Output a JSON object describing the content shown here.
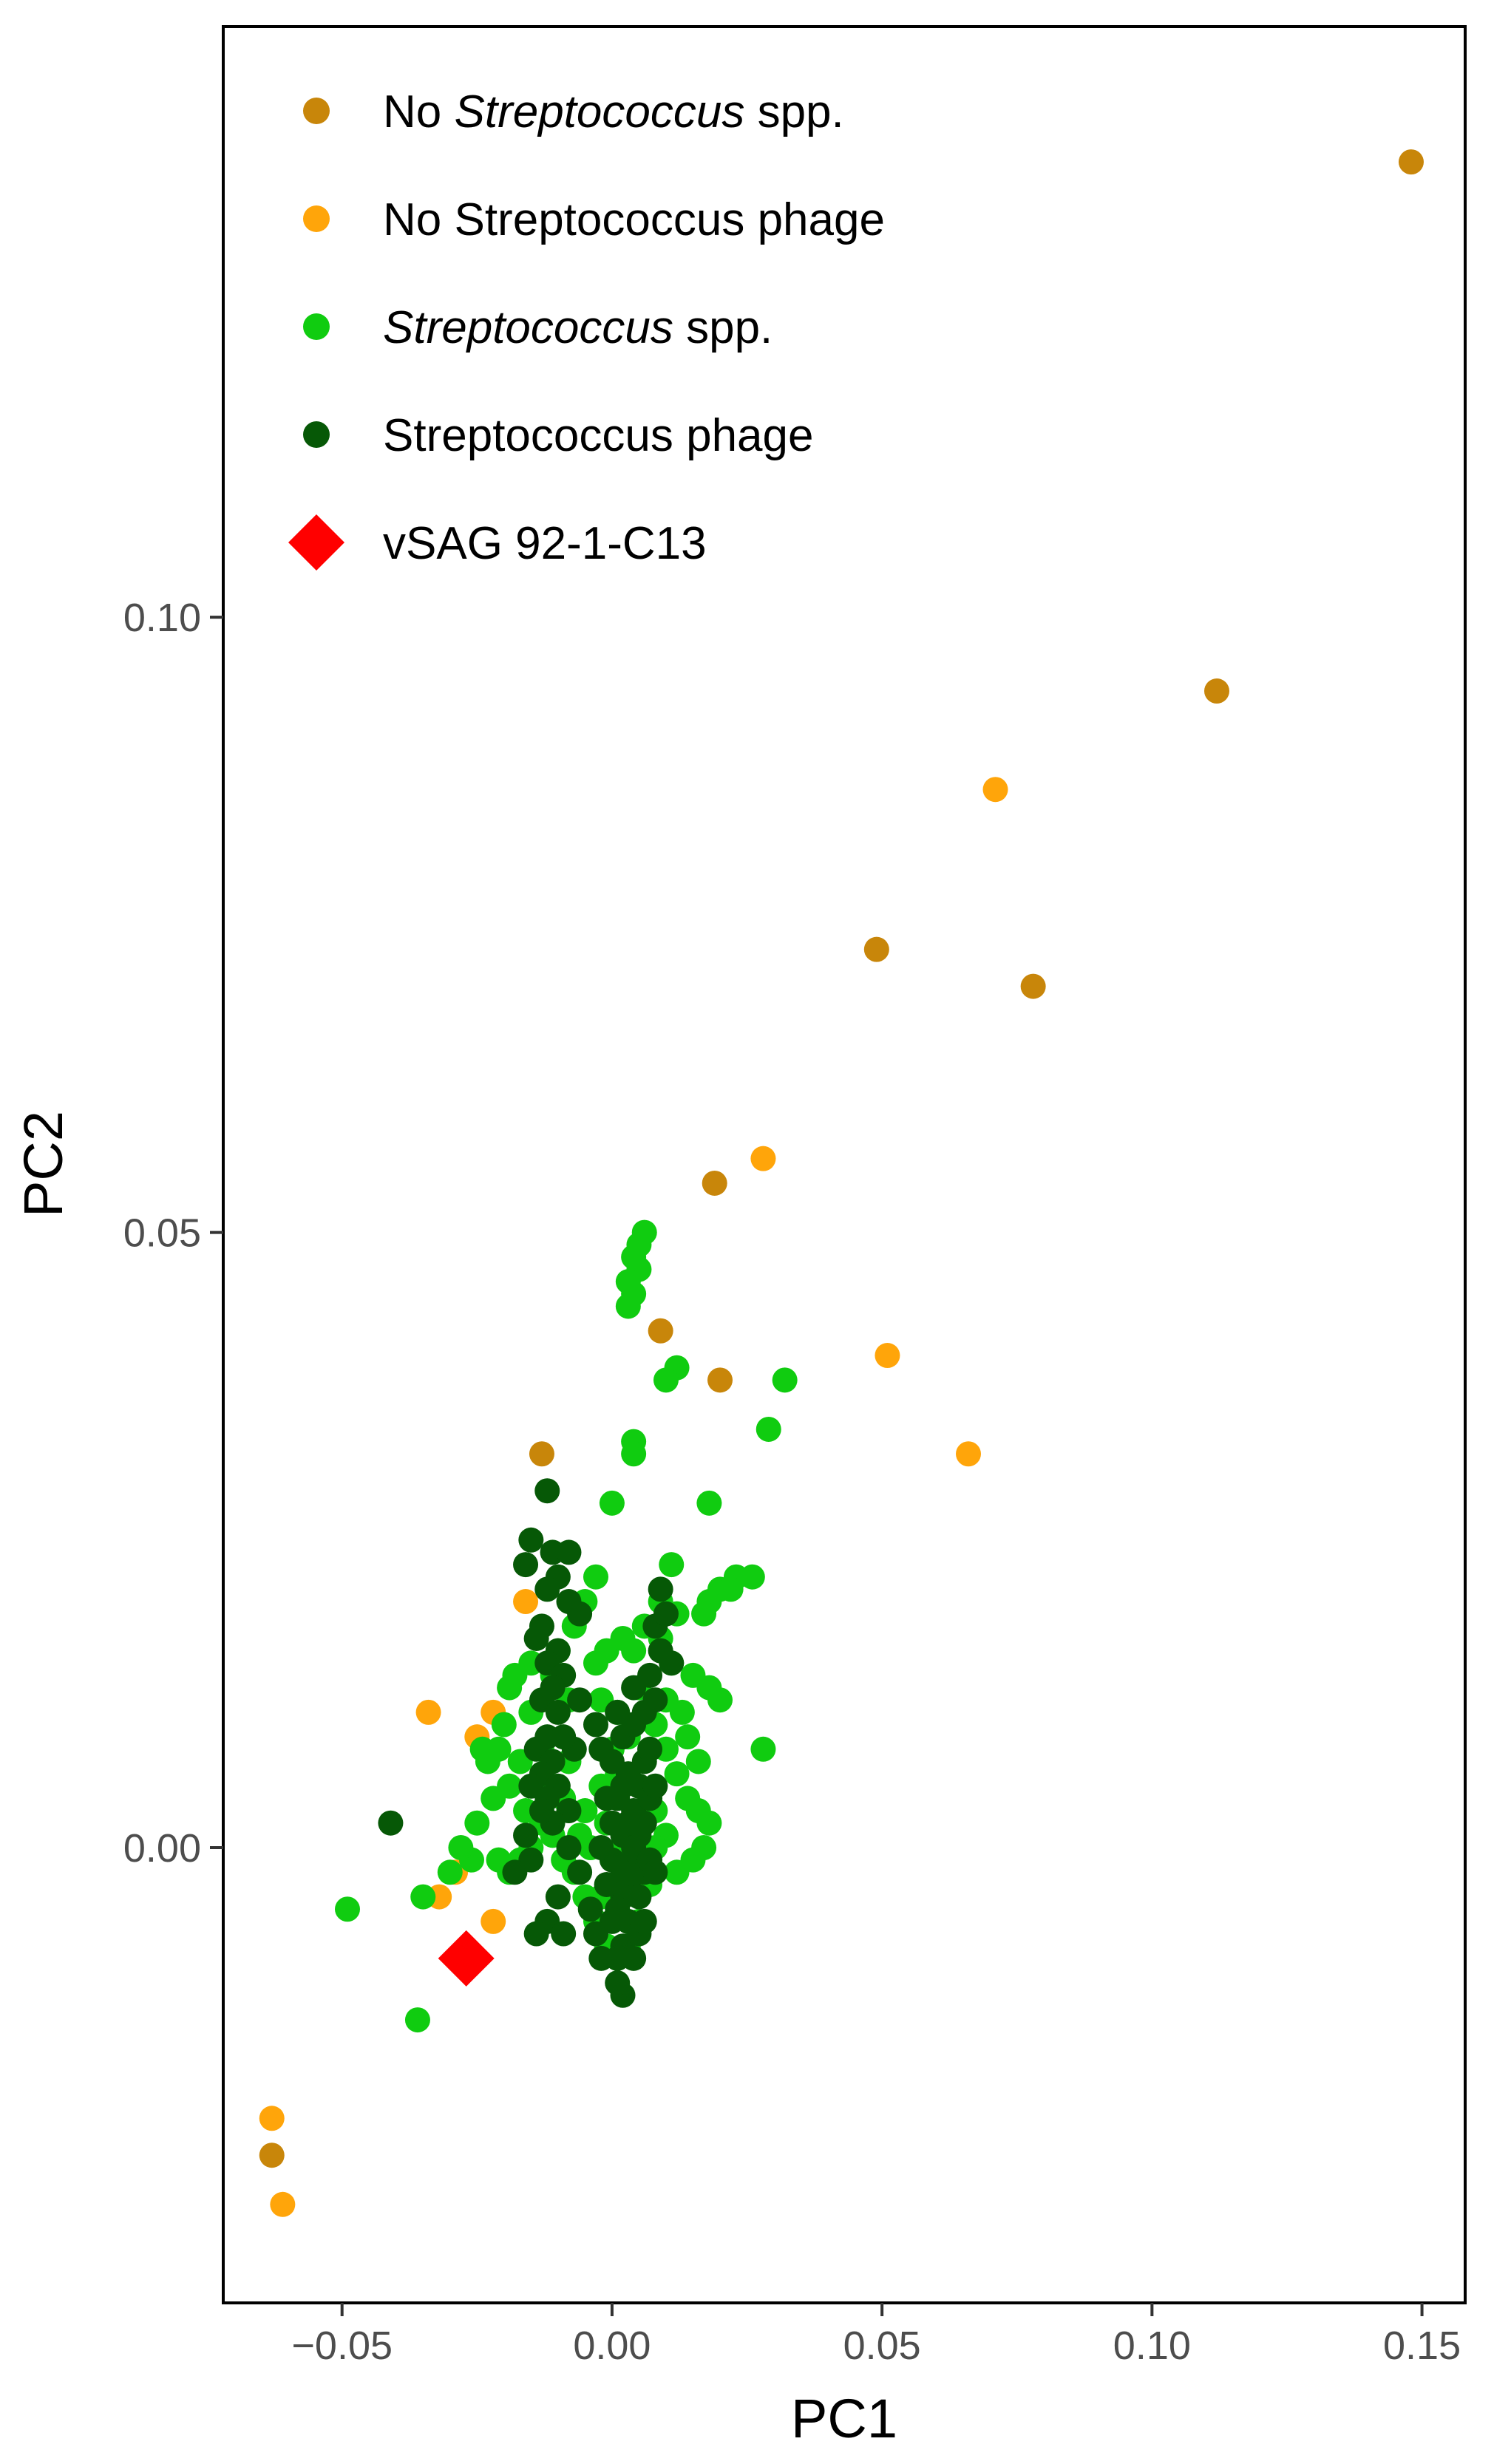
{
  "chart_data": {
    "type": "scatter",
    "xlabel": "PC1",
    "ylabel": "PC2",
    "xlim": [
      -0.072,
      0.158
    ],
    "ylim": [
      -0.037,
      0.148
    ],
    "xticks": [
      -0.05,
      0.0,
      0.05,
      0.1,
      0.15
    ],
    "xtick_labels": [
      "−0.05",
      "0.00",
      "0.05",
      "0.10",
      "0.15"
    ],
    "yticks": [
      0.0,
      0.05,
      0.1
    ],
    "ytick_labels": [
      "0.00",
      "0.05",
      "0.10"
    ],
    "grid": false,
    "legend": {
      "position": "top-left",
      "entries": [
        {
          "key": "no_strep_spp",
          "parts": [
            {
              "text": "No ",
              "italic": false
            },
            {
              "text": "Streptococcus",
              "italic": true
            },
            {
              "text": " spp.",
              "italic": false
            }
          ],
          "color": "#c8860a",
          "marker": "circle"
        },
        {
          "key": "no_strep_phage",
          "parts": [
            {
              "text": "No Streptococcus phage",
              "italic": false
            }
          ],
          "color": "#ffa50a",
          "marker": "circle"
        },
        {
          "key": "strep_spp",
          "parts": [
            {
              "text": "Streptococcus",
              "italic": true
            },
            {
              "text": " spp.",
              "italic": false
            }
          ],
          "color": "#10cc10",
          "marker": "circle"
        },
        {
          "key": "strep_phage",
          "parts": [
            {
              "text": "Streptococcus phage",
              "italic": false
            }
          ],
          "color": "#065806",
          "marker": "circle"
        },
        {
          "key": "vsag",
          "parts": [
            {
              "text": "vSAG 92-1-C13",
              "italic": false
            }
          ],
          "color": "#ff0000",
          "marker": "diamond"
        }
      ]
    },
    "series": [
      {
        "name": "No Streptococcus spp.",
        "color": "#c8860a",
        "marker": "circle",
        "points": [
          [
            0.148,
            0.137
          ],
          [
            0.112,
            0.094
          ],
          [
            0.049,
            0.073
          ],
          [
            0.078,
            0.07
          ],
          [
            0.019,
            0.054
          ],
          [
            0.009,
            0.042
          ],
          [
            0.02,
            0.038
          ],
          [
            -0.013,
            0.032
          ],
          [
            -0.063,
            -0.025
          ]
        ]
      },
      {
        "name": "No Streptococcus phage",
        "color": "#ffa50a",
        "marker": "circle",
        "points": [
          [
            0.071,
            0.086
          ],
          [
            0.028,
            0.056
          ],
          [
            0.051,
            0.04
          ],
          [
            0.066,
            0.032
          ],
          [
            -0.016,
            0.02
          ],
          [
            -0.034,
            0.011
          ],
          [
            -0.022,
            0.011
          ],
          [
            -0.025,
            0.009
          ],
          [
            -0.029,
            -0.002
          ],
          [
            -0.032,
            -0.004
          ],
          [
            -0.022,
            -0.006
          ],
          [
            -0.063,
            -0.022
          ],
          [
            -0.061,
            -0.029
          ]
        ]
      },
      {
        "name": "Streptococcus spp.",
        "color": "#10cc10",
        "marker": "circle",
        "points": [
          [
            0.006,
            0.05
          ],
          [
            0.005,
            0.049
          ],
          [
            0.004,
            0.048
          ],
          [
            0.005,
            0.047
          ],
          [
            0.003,
            0.046
          ],
          [
            0.004,
            0.045
          ],
          [
            0.003,
            0.044
          ],
          [
            0.012,
            0.039
          ],
          [
            0.01,
            0.038
          ],
          [
            0.032,
            0.038
          ],
          [
            0.029,
            0.034
          ],
          [
            0.004,
            0.033
          ],
          [
            0.004,
            0.032
          ],
          [
            0.0,
            0.028
          ],
          [
            0.018,
            0.028
          ],
          [
            0.026,
            0.022
          ],
          [
            0.023,
            0.022
          ],
          [
            0.02,
            0.021
          ],
          [
            0.018,
            0.02
          ],
          [
            0.017,
            0.019
          ],
          [
            0.011,
            0.023
          ],
          [
            0.012,
            0.019
          ],
          [
            0.009,
            0.017
          ],
          [
            0.006,
            0.018
          ],
          [
            0.004,
            0.016
          ],
          [
            -0.003,
            0.022
          ],
          [
            -0.005,
            0.02
          ],
          [
            -0.007,
            0.018
          ],
          [
            -0.01,
            0.016
          ],
          [
            -0.015,
            0.015
          ],
          [
            -0.018,
            0.014
          ],
          [
            -0.011,
            0.014
          ],
          [
            -0.003,
            0.015
          ],
          [
            -0.001,
            0.016
          ],
          [
            0.002,
            0.017
          ],
          [
            -0.008,
            0.012
          ],
          [
            -0.015,
            0.011
          ],
          [
            -0.019,
            0.013
          ],
          [
            -0.02,
            0.01
          ],
          [
            -0.021,
            0.008
          ],
          [
            -0.017,
            0.007
          ],
          [
            -0.019,
            0.005
          ],
          [
            -0.022,
            0.004
          ],
          [
            -0.023,
            0.007
          ],
          [
            -0.024,
            0.008
          ],
          [
            -0.013,
            0.008
          ],
          [
            -0.011,
            0.005
          ],
          [
            -0.009,
            0.004
          ],
          [
            -0.005,
            0.003
          ],
          [
            -0.002,
            0.005
          ],
          [
            0.0,
            0.008
          ],
          [
            0.001,
            0.006
          ],
          [
            0.008,
            0.01
          ],
          [
            0.01,
            0.012
          ],
          [
            0.013,
            0.011
          ],
          [
            0.015,
            0.014
          ],
          [
            0.018,
            0.013
          ],
          [
            0.02,
            0.012
          ],
          [
            0.01,
            0.008
          ],
          [
            0.012,
            0.006
          ],
          [
            0.014,
            0.004
          ],
          [
            0.016,
            0.003
          ],
          [
            0.018,
            0.002
          ],
          [
            0.017,
            0.0
          ],
          [
            0.015,
            -0.001
          ],
          [
            0.012,
            -0.002
          ],
          [
            0.01,
            0.001
          ],
          [
            0.008,
            0.003
          ],
          [
            0.007,
            -0.003
          ],
          [
            0.005,
            -0.006
          ],
          [
            0.003,
            -0.008
          ],
          [
            0.001,
            -0.009
          ],
          [
            -0.001,
            -0.008
          ],
          [
            -0.003,
            -0.006
          ],
          [
            -0.005,
            -0.004
          ],
          [
            -0.007,
            -0.002
          ],
          [
            -0.006,
            0.001
          ],
          [
            -0.004,
            0.0
          ],
          [
            -0.009,
            -0.001
          ],
          [
            -0.011,
            0.001
          ],
          [
            -0.013,
            0.002
          ],
          [
            -0.015,
            0.0
          ],
          [
            -0.017,
            -0.001
          ],
          [
            -0.019,
            -0.002
          ],
          [
            -0.021,
            -0.001
          ],
          [
            -0.025,
            0.002
          ],
          [
            -0.026,
            -0.001
          ],
          [
            -0.028,
            0.0
          ],
          [
            -0.03,
            -0.002
          ],
          [
            -0.035,
            -0.004
          ],
          [
            -0.049,
            -0.005
          ],
          [
            -0.036,
            -0.014
          ],
          [
            0.028,
            0.008
          ],
          [
            0.001,
            0.011
          ],
          [
            0.003,
            0.009
          ],
          [
            -0.002,
            0.012
          ],
          [
            0.005,
            0.013
          ],
          [
            0.006,
            0.002
          ],
          [
            0.008,
            0.0
          ],
          [
            0.002,
            0.0
          ],
          [
            -0.001,
            0.002
          ],
          [
            0.004,
            -0.002
          ],
          [
            -0.002,
            -0.004
          ],
          [
            0.011,
            0.015
          ],
          [
            0.009,
            0.02
          ],
          [
            0.022,
            0.021
          ],
          [
            0.014,
            0.009
          ],
          [
            0.016,
            0.007
          ],
          [
            -0.016,
            0.003
          ],
          [
            -0.008,
            0.007
          ]
        ]
      },
      {
        "name": "Streptococcus phage",
        "color": "#065806",
        "marker": "circle",
        "points": [
          [
            -0.012,
            0.029
          ],
          [
            -0.015,
            0.025
          ],
          [
            -0.016,
            0.023
          ],
          [
            -0.011,
            0.024
          ],
          [
            -0.008,
            0.024
          ],
          [
            -0.01,
            0.022
          ],
          [
            -0.012,
            0.021
          ],
          [
            -0.008,
            0.02
          ],
          [
            -0.006,
            0.019
          ],
          [
            -0.013,
            0.018
          ],
          [
            -0.014,
            0.017
          ],
          [
            -0.01,
            0.016
          ],
          [
            -0.012,
            0.015
          ],
          [
            -0.009,
            0.014
          ],
          [
            -0.011,
            0.013
          ],
          [
            -0.013,
            0.012
          ],
          [
            -0.01,
            0.011
          ],
          [
            -0.012,
            0.009
          ],
          [
            -0.014,
            0.008
          ],
          [
            -0.011,
            0.007
          ],
          [
            -0.013,
            0.006
          ],
          [
            -0.015,
            0.005
          ],
          [
            -0.01,
            0.005
          ],
          [
            -0.012,
            0.004
          ],
          [
            -0.008,
            0.003
          ],
          [
            -0.007,
            0.008
          ],
          [
            -0.009,
            0.009
          ],
          [
            -0.006,
            0.012
          ],
          [
            -0.003,
            0.01
          ],
          [
            -0.002,
            0.008
          ],
          [
            0.0,
            0.007
          ],
          [
            0.002,
            0.009
          ],
          [
            0.004,
            0.01
          ],
          [
            0.003,
            0.006
          ],
          [
            0.001,
            0.004
          ],
          [
            0.0,
            0.002
          ],
          [
            0.002,
            0.001
          ],
          [
            0.004,
            0.003
          ],
          [
            0.005,
            0.005
          ],
          [
            0.006,
            0.007
          ],
          [
            0.007,
            0.008
          ],
          [
            0.005,
            0.001
          ],
          [
            0.004,
            -0.001
          ],
          [
            0.003,
            -0.003
          ],
          [
            0.002,
            -0.004
          ],
          [
            0.001,
            -0.005
          ],
          [
            0.0,
            -0.006
          ],
          [
            -0.001,
            -0.003
          ],
          [
            0.002,
            -0.002
          ],
          [
            0.004,
            0.0
          ],
          [
            0.006,
            0.002
          ],
          [
            0.006,
            -0.002
          ],
          [
            0.005,
            -0.004
          ],
          [
            0.003,
            -0.006
          ],
          [
            0.002,
            -0.008
          ],
          [
            0.001,
            -0.009
          ],
          [
            0.002,
            -0.012
          ],
          [
            -0.002,
            -0.009
          ],
          [
            -0.003,
            -0.007
          ],
          [
            -0.004,
            -0.005
          ],
          [
            -0.006,
            -0.002
          ],
          [
            -0.008,
            0.0
          ],
          [
            -0.011,
            0.002
          ],
          [
            -0.013,
            0.003
          ],
          [
            -0.01,
            -0.004
          ],
          [
            -0.012,
            -0.006
          ],
          [
            -0.009,
            -0.007
          ],
          [
            -0.014,
            -0.007
          ],
          [
            -0.015,
            -0.001
          ],
          [
            -0.016,
            0.001
          ],
          [
            -0.018,
            -0.002
          ],
          [
            -0.041,
            0.002
          ],
          [
            0.009,
            0.021
          ],
          [
            0.008,
            0.018
          ],
          [
            0.01,
            0.019
          ],
          [
            0.009,
            0.016
          ],
          [
            0.011,
            0.015
          ],
          [
            0.007,
            0.014
          ],
          [
            0.004,
            0.013
          ],
          [
            0.008,
            0.012
          ],
          [
            0.006,
            0.011
          ],
          [
            0.007,
            0.004
          ],
          [
            0.008,
            0.005
          ],
          [
            0.001,
            0.011
          ],
          [
            0.0,
            -0.001
          ],
          [
            -0.002,
            0.0
          ],
          [
            0.003,
            0.002
          ],
          [
            0.005,
            -0.007
          ],
          [
            0.004,
            -0.009
          ],
          [
            0.006,
            -0.006
          ],
          [
            0.001,
            -0.011
          ],
          [
            0.007,
            -0.001
          ],
          [
            0.008,
            -0.002
          ],
          [
            -0.001,
            0.004
          ],
          [
            0.002,
            0.005
          ]
        ]
      },
      {
        "name": "vSAG 92-1-C13",
        "color": "#ff0000",
        "marker": "diamond",
        "points": [
          [
            -0.027,
            -0.009
          ]
        ]
      }
    ]
  }
}
